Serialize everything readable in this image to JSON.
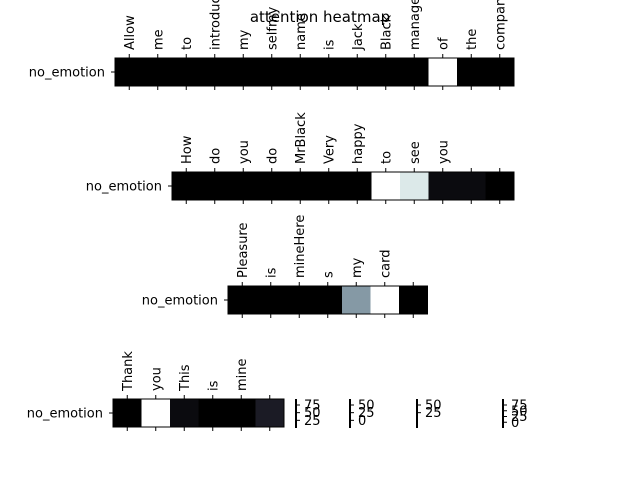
{
  "chart_data": {
    "type": "heatmap",
    "title": "attention heatmap",
    "panels": [
      {
        "row_label": "no_emotion",
        "tokens": [
          "Allow",
          "me",
          "to",
          "introduce",
          "my",
          "selfmy",
          "name",
          "is",
          "Jack",
          "Black",
          "manager",
          "of",
          "the",
          "company"
        ],
        "values": [
          0,
          0,
          0,
          0,
          0,
          0,
          0,
          0,
          0,
          0,
          0,
          1,
          0,
          0
        ],
        "colorbar_ticks": [
          "75",
          "50",
          "25"
        ]
      },
      {
        "row_label": "no_emotion",
        "tokens": [
          "How",
          "do",
          "you",
          "do",
          "MrBlack",
          "Very",
          "happy",
          "to",
          "see",
          "you",
          "",
          ""
        ],
        "values": [
          0,
          0,
          0,
          0,
          0,
          0,
          0,
          1,
          0.9,
          0.05,
          0.05,
          0
        ],
        "colorbar_ticks": [
          "50",
          "25",
          "0"
        ]
      },
      {
        "row_label": "no_emotion",
        "tokens": [
          "Pleasure",
          "is",
          "mineHere",
          "s",
          "my",
          "card",
          ""
        ],
        "values": [
          0,
          0,
          0,
          0,
          0.6,
          1,
          0
        ],
        "colorbar_ticks": [
          "50",
          "25"
        ]
      },
      {
        "row_label": "no_emotion",
        "tokens": [
          "Thank",
          "you",
          "This",
          "is",
          "mine",
          ""
        ],
        "values": [
          0,
          1,
          0.05,
          0,
          0,
          0.12
        ],
        "colorbar_ticks": [
          "75",
          "50",
          "25",
          "0"
        ]
      }
    ]
  }
}
